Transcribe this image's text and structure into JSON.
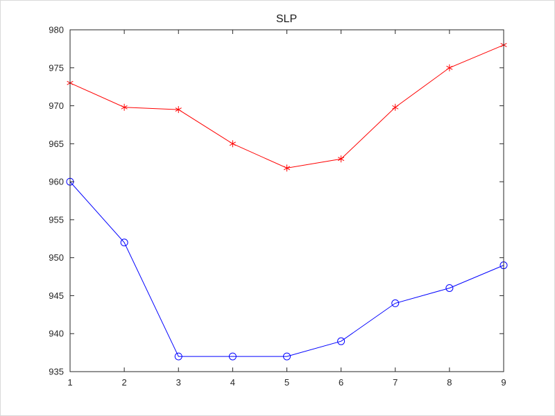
{
  "chart_data": {
    "type": "line",
    "title": "SLP",
    "xlabel": "",
    "ylabel": "",
    "xlim": [
      1,
      9
    ],
    "ylim": [
      935,
      980
    ],
    "xticks": [
      1,
      2,
      3,
      4,
      5,
      6,
      7,
      8,
      9
    ],
    "yticks": [
      935,
      940,
      945,
      950,
      955,
      960,
      965,
      970,
      975,
      980
    ],
    "grid": false,
    "legend": "none",
    "x": [
      1,
      2,
      3,
      4,
      5,
      6,
      7,
      8,
      9
    ],
    "series": [
      {
        "name": "red-asterisk-series",
        "color": "#ff0000",
        "marker": "asterisk",
        "values": [
          973,
          969.8,
          969.5,
          965,
          961.8,
          963,
          969.8,
          975,
          978
        ]
      },
      {
        "name": "blue-circle-series",
        "color": "#0000ff",
        "marker": "circle",
        "values": [
          960,
          952,
          937,
          937,
          937,
          939,
          944,
          946,
          949
        ]
      }
    ],
    "axis_color": "#262626"
  }
}
